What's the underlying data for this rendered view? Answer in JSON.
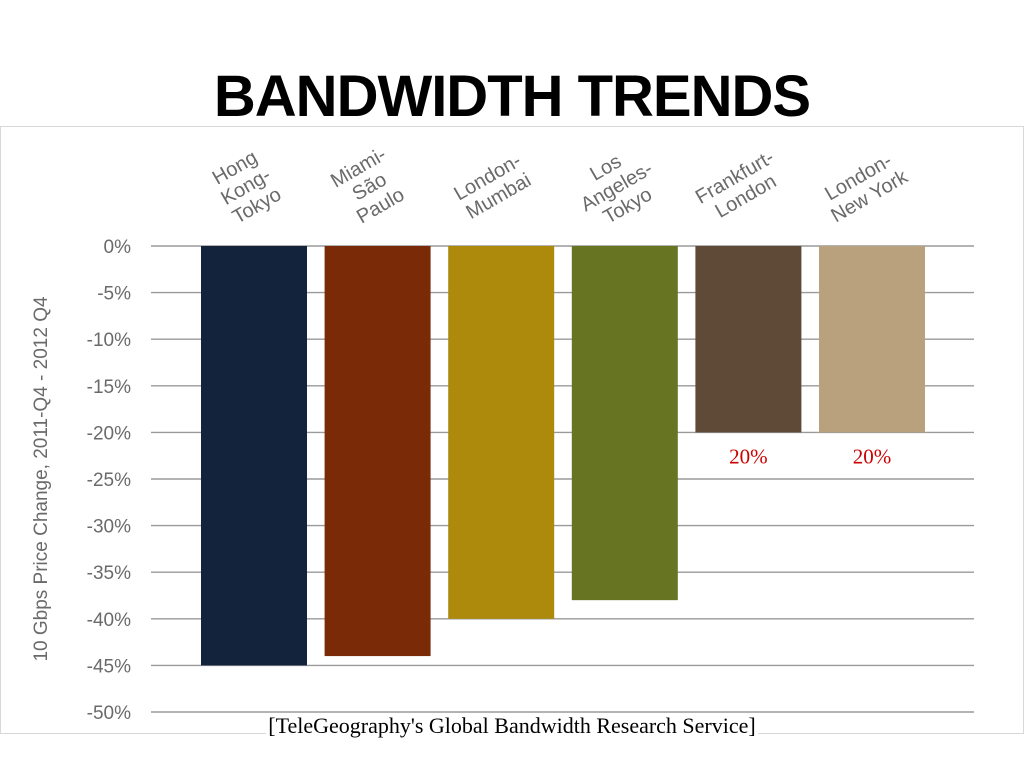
{
  "slide": {
    "title": "BANDWIDTH TRENDS",
    "source": "[TeleGeography's Global Bandwidth Research Service]"
  },
  "chart_data": {
    "type": "bar",
    "ylabel": "10 Gbps Price Change, 2011-Q4 - 2012 Q4",
    "ylim": [
      -50,
      0
    ],
    "yticks": [
      {
        "value": 0,
        "label": "0%"
      },
      {
        "value": -5,
        "label": "-5%"
      },
      {
        "value": -10,
        "label": "-10%"
      },
      {
        "value": -15,
        "label": "-15%"
      },
      {
        "value": -20,
        "label": "-20%"
      },
      {
        "value": -25,
        "label": "-25%"
      },
      {
        "value": -30,
        "label": "-30%"
      },
      {
        "value": -35,
        "label": "-35%"
      },
      {
        "value": -40,
        "label": "-40%"
      },
      {
        "value": -45,
        "label": "-45%"
      },
      {
        "value": -50,
        "label": "-50%"
      }
    ],
    "grid": true,
    "legend": "none",
    "categories": [
      {
        "label": [
          "Hong",
          "Kong-",
          "Tokyo"
        ],
        "value": -45,
        "color": "#13233b"
      },
      {
        "label": [
          "Miami-",
          "São",
          "Paulo"
        ],
        "value": -44,
        "color": "#7a2a06"
      },
      {
        "label": [
          "London-",
          "Mumbai"
        ],
        "value": -40,
        "color": "#ad8a0c"
      },
      {
        "label": [
          "Los",
          "Angeles-",
          "Tokyo"
        ],
        "value": -38,
        "color": "#677421"
      },
      {
        "label": [
          "Frankfurt-",
          "London"
        ],
        "value": -20,
        "color": "#5e4a36"
      },
      {
        "label": [
          "London-",
          "New York"
        ],
        "value": -20,
        "color": "#b8a17c"
      }
    ],
    "annotations": [
      {
        "category_index": 4,
        "text": "20%",
        "color": "#cc0000"
      },
      {
        "category_index": 5,
        "text": "20%",
        "color": "#cc0000"
      }
    ]
  }
}
